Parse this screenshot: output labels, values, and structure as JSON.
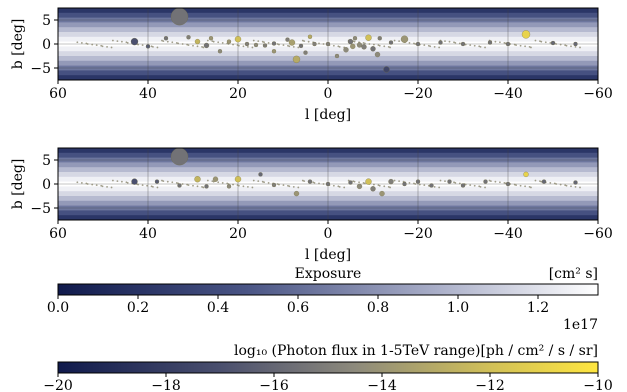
{
  "chart_data": [
    {
      "type": "scatter",
      "name": "top-panel",
      "xlabel": "l [deg]",
      "ylabel": "b [deg]",
      "xlim": [
        60,
        -60
      ],
      "ylim": [
        -7.5,
        7.5
      ],
      "xticks": [
        -60,
        -40,
        -20,
        0,
        20,
        40,
        60
      ],
      "yticks": [
        5,
        0,
        -5
      ],
      "xtick_labels": [
        "−60",
        "−40",
        "−20",
        "0",
        "20",
        "40",
        "60"
      ],
      "ytick_labels": [
        "5",
        "0",
        "−5"
      ],
      "background": "exposure map",
      "grid": true,
      "points": [
        {
          "l": 33,
          "b": 5.7,
          "r": 8.5,
          "flux": -15.5
        },
        {
          "l": 43,
          "b": 0.5,
          "r": 3.5,
          "flux": -17.0
        },
        {
          "l": 40,
          "b": -0.5,
          "r": 2.0,
          "flux": -16.5
        },
        {
          "l": 36,
          "b": 1.2,
          "r": 2.0,
          "flux": -15.5
        },
        {
          "l": 31,
          "b": 1.4,
          "r": 2.0,
          "flux": -15.0
        },
        {
          "l": 29,
          "b": 0.5,
          "r": 2.5,
          "flux": -12.5
        },
        {
          "l": 27,
          "b": -0.3,
          "r": 2.5,
          "flux": -15.5
        },
        {
          "l": 26,
          "b": 1.2,
          "r": 2.0,
          "flux": -14.0
        },
        {
          "l": 24,
          "b": -1.5,
          "r": 2.0,
          "flux": -14.5
        },
        {
          "l": 22,
          "b": 0.5,
          "r": 2.0,
          "flux": -14.0
        },
        {
          "l": 20,
          "b": 1.0,
          "r": 3.0,
          "flux": -12.0
        },
        {
          "l": 18,
          "b": 0.0,
          "r": 2.0,
          "flux": -15.0
        },
        {
          "l": 16,
          "b": -0.2,
          "r": 2.0,
          "flux": -14.5
        },
        {
          "l": 14,
          "b": -0.3,
          "r": 2.0,
          "flux": -15.0
        },
        {
          "l": 12,
          "b": 0.1,
          "r": 2.0,
          "flux": -15.5
        },
        {
          "l": 9,
          "b": 0.9,
          "r": 2.0,
          "flux": -15.0
        },
        {
          "l": 8,
          "b": 0.3,
          "r": 3.0,
          "flux": -13.5
        },
        {
          "l": 7,
          "b": -3.2,
          "r": 3.5,
          "flux": -13.0
        },
        {
          "l": 6,
          "b": -0.4,
          "r": 2.0,
          "flux": -15.5
        },
        {
          "l": 5,
          "b": -1.8,
          "r": 2.0,
          "flux": -15.0
        },
        {
          "l": 3,
          "b": 0.0,
          "r": 2.0,
          "flux": -15.0
        },
        {
          "l": 0,
          "b": 0.0,
          "r": 2.0,
          "flux": -15.0
        },
        {
          "l": -4,
          "b": -1.2,
          "r": 2.5,
          "flux": -14.5
        },
        {
          "l": -5,
          "b": 0.5,
          "r": 2.5,
          "flux": -15.5
        },
        {
          "l": -5.5,
          "b": -0.5,
          "r": 2.5,
          "flux": -14.0
        },
        {
          "l": -6,
          "b": 1.2,
          "r": 2.0,
          "flux": -14.5
        },
        {
          "l": -7,
          "b": -0.2,
          "r": 2.5,
          "flux": -14.5
        },
        {
          "l": -8,
          "b": -0.6,
          "r": 2.5,
          "flux": -15.0
        },
        {
          "l": -9,
          "b": 1.3,
          "r": 3.0,
          "flux": -12.0
        },
        {
          "l": -10,
          "b": -1.0,
          "r": 2.5,
          "flux": -15.5
        },
        {
          "l": -11,
          "b": -2.2,
          "r": 2.5,
          "flux": -14.5
        },
        {
          "l": -11.5,
          "b": 1.2,
          "r": 2.0,
          "flux": -15.0
        },
        {
          "l": -13,
          "b": -5.3,
          "r": 3.0,
          "flux": -17.5
        },
        {
          "l": -14,
          "b": 0.3,
          "r": 2.0,
          "flux": -15.5
        },
        {
          "l": -17,
          "b": 1.0,
          "r": 3.5,
          "flux": -14.0
        },
        {
          "l": -20,
          "b": 0.0,
          "r": 2.0,
          "flux": -15.5
        },
        {
          "l": -25,
          "b": 0.3,
          "r": 2.0,
          "flux": -15.5
        },
        {
          "l": -30,
          "b": 0.0,
          "r": 2.0,
          "flux": -15.5
        },
        {
          "l": -36,
          "b": 0.3,
          "r": 2.0,
          "flux": -15.5
        },
        {
          "l": -40,
          "b": 0.0,
          "r": 2.0,
          "flux": -15.5
        },
        {
          "l": -44,
          "b": 2.0,
          "r": 4.0,
          "flux": -11.0
        },
        {
          "l": -50,
          "b": 0.2,
          "r": 2.0,
          "flux": -16.0
        },
        {
          "l": -55,
          "b": 0.0,
          "r": 2.0,
          "flux": -16.0
        },
        {
          "l": 12,
          "b": -1.5,
          "r": 2.0,
          "flux": -14.0
        },
        {
          "l": 4,
          "b": 1.5,
          "r": 2.0,
          "flux": -13.0
        },
        {
          "l": -2,
          "b": -2.5,
          "r": 2.0,
          "flux": -14.5
        }
      ]
    },
    {
      "type": "scatter",
      "name": "bottom-panel",
      "xlabel": "l [deg]",
      "ylabel": "b [deg]",
      "xlim": [
        60,
        -60
      ],
      "ylim": [
        -7.5,
        7.5
      ],
      "xticks": [
        -60,
        -40,
        -20,
        0,
        20,
        40,
        60
      ],
      "yticks": [
        5,
        0,
        -5
      ],
      "xtick_labels": [
        "−60",
        "−40",
        "−20",
        "0",
        "20",
        "40",
        "60"
      ],
      "ytick_labels": [
        "5",
        "0",
        "−5"
      ],
      "background": "exposure map",
      "grid": true,
      "points": [
        {
          "l": 33,
          "b": 5.7,
          "r": 8.5,
          "flux": -15.5
        },
        {
          "l": 43,
          "b": 0.5,
          "r": 3.0,
          "flux": -17.0
        },
        {
          "l": 38,
          "b": 0.5,
          "r": 2.0,
          "flux": -16.5
        },
        {
          "l": 33,
          "b": -0.3,
          "r": 2.0,
          "flux": -15.5
        },
        {
          "l": 29,
          "b": 1.0,
          "r": 3.0,
          "flux": -12.5
        },
        {
          "l": 27,
          "b": -0.5,
          "r": 2.0,
          "flux": -15.5
        },
        {
          "l": 25,
          "b": 1.0,
          "r": 2.5,
          "flux": -14.0
        },
        {
          "l": 22,
          "b": -0.5,
          "r": 2.0,
          "flux": -14.5
        },
        {
          "l": 20,
          "b": 1.0,
          "r": 3.0,
          "flux": -12.0
        },
        {
          "l": 15,
          "b": 2.0,
          "r": 2.0,
          "flux": -16.0
        },
        {
          "l": 12,
          "b": -0.2,
          "r": 2.0,
          "flux": -15.0
        },
        {
          "l": 7,
          "b": -2.0,
          "r": 2.5,
          "flux": -14.0
        },
        {
          "l": 4,
          "b": 0.5,
          "r": 2.0,
          "flux": -15.5
        },
        {
          "l": 0,
          "b": 0.0,
          "r": 2.0,
          "flux": -15.5
        },
        {
          "l": -5,
          "b": 0.3,
          "r": 2.0,
          "flux": -15.5
        },
        {
          "l": -7,
          "b": -0.5,
          "r": 2.5,
          "flux": -14.5
        },
        {
          "l": -9,
          "b": 0.5,
          "r": 3.0,
          "flux": -12.0
        },
        {
          "l": -10,
          "b": -1.0,
          "r": 2.5,
          "flux": -15.0
        },
        {
          "l": -12,
          "b": -2.0,
          "r": 2.5,
          "flux": -14.0
        },
        {
          "l": -14,
          "b": 0.5,
          "r": 2.5,
          "flux": -15.0
        },
        {
          "l": -17,
          "b": 0.0,
          "r": 2.0,
          "flux": -15.5
        },
        {
          "l": -20,
          "b": 0.5,
          "r": 2.0,
          "flux": -15.5
        },
        {
          "l": -23,
          "b": -0.3,
          "r": 2.0,
          "flux": -15.5
        },
        {
          "l": -27,
          "b": 0.5,
          "r": 2.0,
          "flux": -15.5
        },
        {
          "l": -30,
          "b": -0.3,
          "r": 2.0,
          "flux": -15.5
        },
        {
          "l": -35,
          "b": 0.5,
          "r": 2.0,
          "flux": -15.5
        },
        {
          "l": -40,
          "b": 0.0,
          "r": 2.0,
          "flux": -15.5
        },
        {
          "l": -44,
          "b": 2.0,
          "r": 2.5,
          "flux": -11.0
        },
        {
          "l": -48,
          "b": 0.5,
          "r": 2.0,
          "flux": -16.0
        },
        {
          "l": -55,
          "b": 0.3,
          "r": 2.0,
          "flux": -16.0
        }
      ]
    }
  ],
  "colorbars": [
    {
      "label": "Exposure",
      "unit": "[cm² s]",
      "ticks": [
        0.0,
        0.2,
        0.4,
        0.6,
        0.8,
        1.0,
        1.2
      ],
      "tick_labels": [
        "0.0",
        "0.2",
        "0.4",
        "0.6",
        "0.8",
        "1.0",
        "1.2"
      ],
      "range": [
        0.0,
        1.35
      ],
      "offset": "1e17",
      "colors": [
        "#101a4c",
        "#ffffff"
      ]
    },
    {
      "label": "log₁₀ (Photon flux in 1-5TeV range)[ph / cm² / s / sr]",
      "ticks": [
        -20,
        -18,
        -16,
        -14,
        -12,
        -10
      ],
      "tick_labels": [
        "−20",
        "−18",
        "−16",
        "−14",
        "−12",
        "−10"
      ],
      "range": [
        -20,
        -10
      ],
      "colors": [
        "#101a4c",
        "#ffe640"
      ]
    }
  ]
}
